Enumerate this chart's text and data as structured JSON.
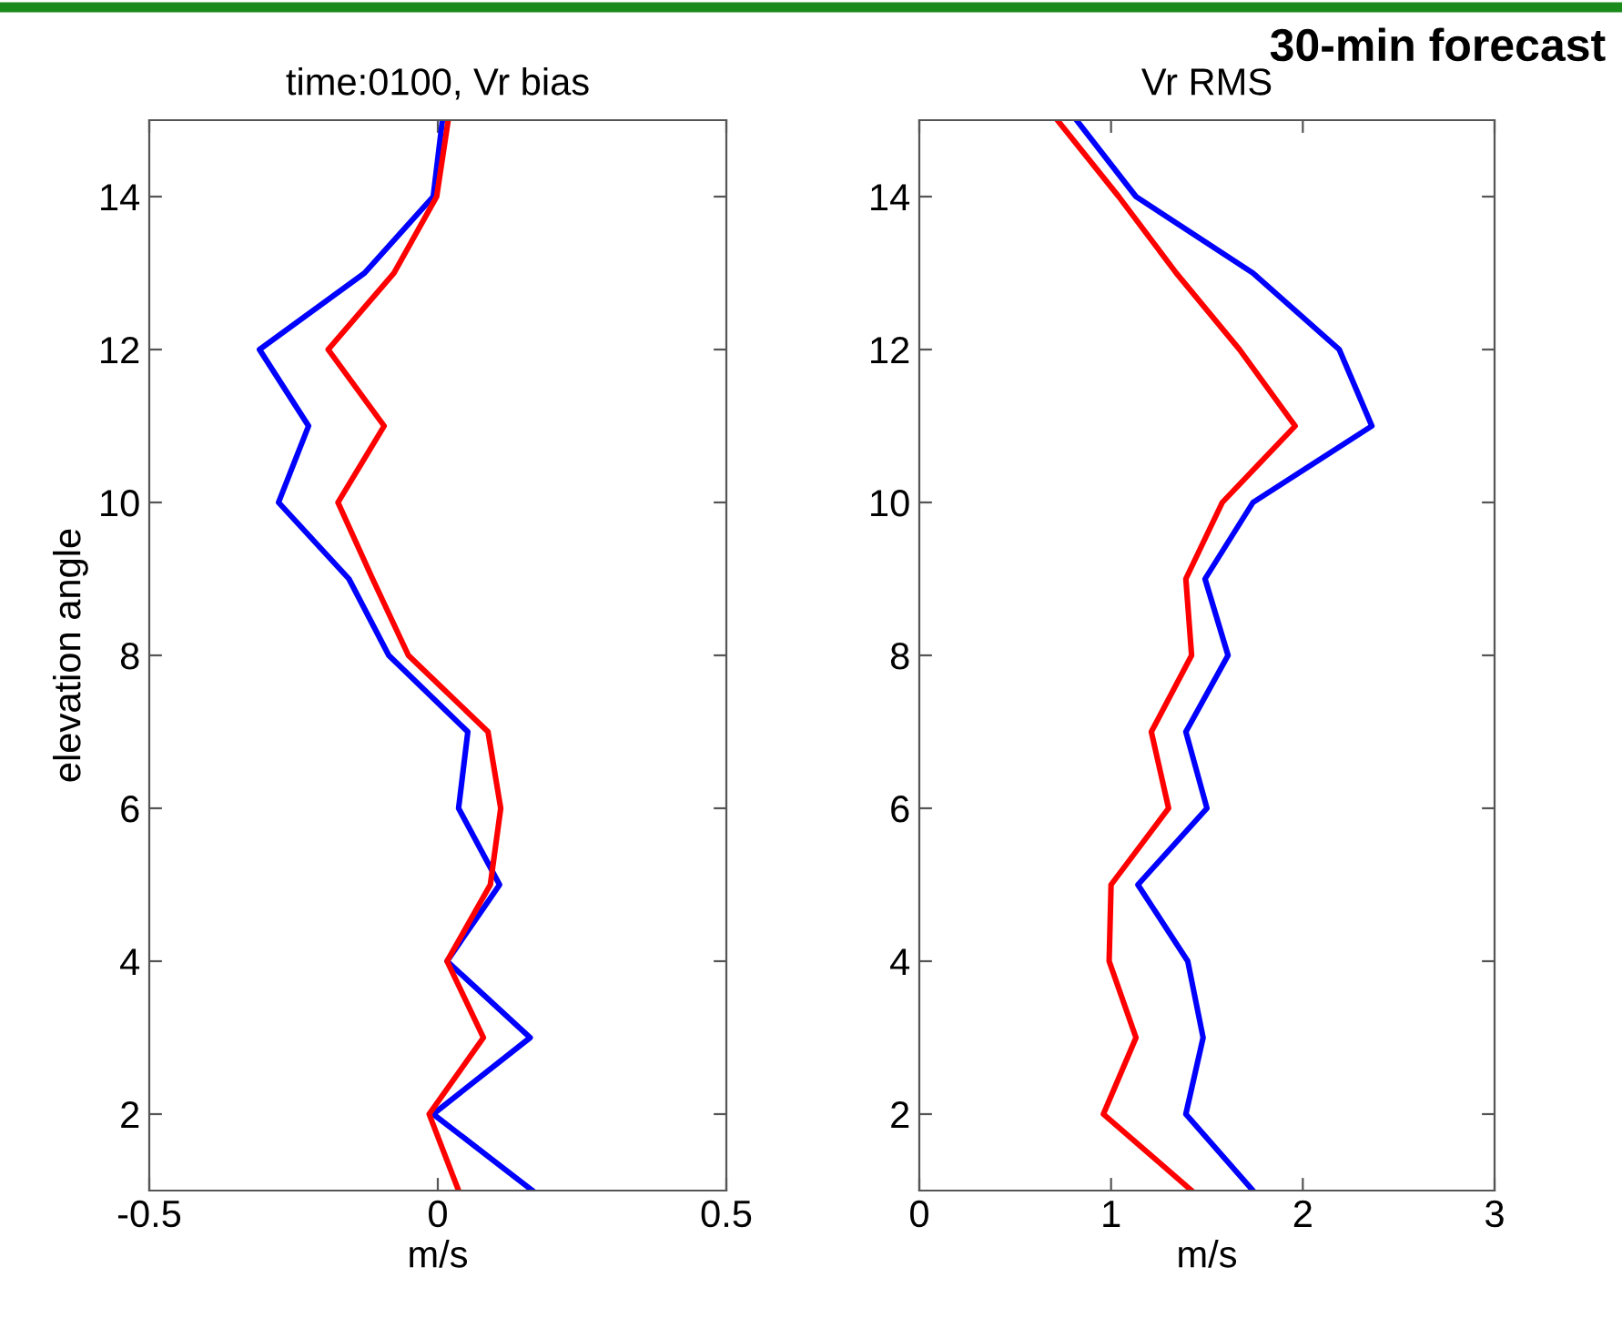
{
  "chart_data": [
    {
      "type": "line",
      "title": "time:0100, Vr bias",
      "xlabel": "m/s",
      "ylabel": "elevation angle",
      "xlim": [
        -0.5,
        0.5
      ],
      "xticks": [
        -0.5,
        0,
        0.5
      ],
      "ylim": [
        1,
        15
      ],
      "yticks": [
        2,
        4,
        6,
        8,
        10,
        12,
        14
      ],
      "grid": false,
      "legend": false,
      "series": [
        {
          "color": "#0000ff",
          "x": [
            0.008,
            -0.008,
            -0.127,
            -0.309,
            -0.224,
            -0.276,
            -0.154,
            -0.085,
            0.052,
            0.036,
            0.107,
            0.016,
            0.16,
            -0.008,
            0.164
          ],
          "values": [
            15,
            14,
            13,
            12,
            11,
            10,
            9,
            8,
            7,
            6,
            5,
            4,
            3,
            2,
            1
          ]
        },
        {
          "color": "#ff0000",
          "x": [
            0.018,
            -0.002,
            -0.076,
            -0.19,
            -0.093,
            -0.173,
            -0.113,
            -0.051,
            0.087,
            0.109,
            0.091,
            0.016,
            0.079,
            -0.015,
            0.036
          ],
          "values": [
            15,
            14,
            13,
            12,
            11,
            10,
            9,
            8,
            7,
            6,
            5,
            4,
            3,
            2,
            1
          ]
        }
      ]
    },
    {
      "type": "line",
      "title": "Vr RMS",
      "xlabel": "m/s",
      "xlim": [
        0,
        3
      ],
      "xticks": [
        0,
        1,
        2,
        3
      ],
      "ylim": [
        1,
        15
      ],
      "yticks": [
        2,
        4,
        6,
        8,
        10,
        12,
        14
      ],
      "grid": false,
      "legend": false,
      "annotations": [
        "30-min forecast"
      ],
      "series": [
        {
          "color": "#0000ff",
          "x": [
            0.82,
            1.13,
            1.74,
            2.19,
            2.36,
            1.74,
            1.49,
            1.61,
            1.39,
            1.5,
            1.14,
            1.4,
            1.48,
            1.39,
            1.74
          ],
          "values": [
            15,
            14,
            13,
            12,
            11,
            10,
            9,
            8,
            7,
            6,
            5,
            4,
            3,
            2,
            1
          ]
        },
        {
          "color": "#ff0000",
          "x": [
            0.72,
            1.04,
            1.34,
            1.67,
            1.96,
            1.58,
            1.39,
            1.42,
            1.21,
            1.3,
            1.0,
            0.99,
            1.13,
            0.96,
            1.42
          ],
          "values": [
            15,
            14,
            13,
            12,
            11,
            10,
            9,
            8,
            7,
            6,
            5,
            4,
            3,
            2,
            1
          ]
        }
      ]
    }
  ]
}
